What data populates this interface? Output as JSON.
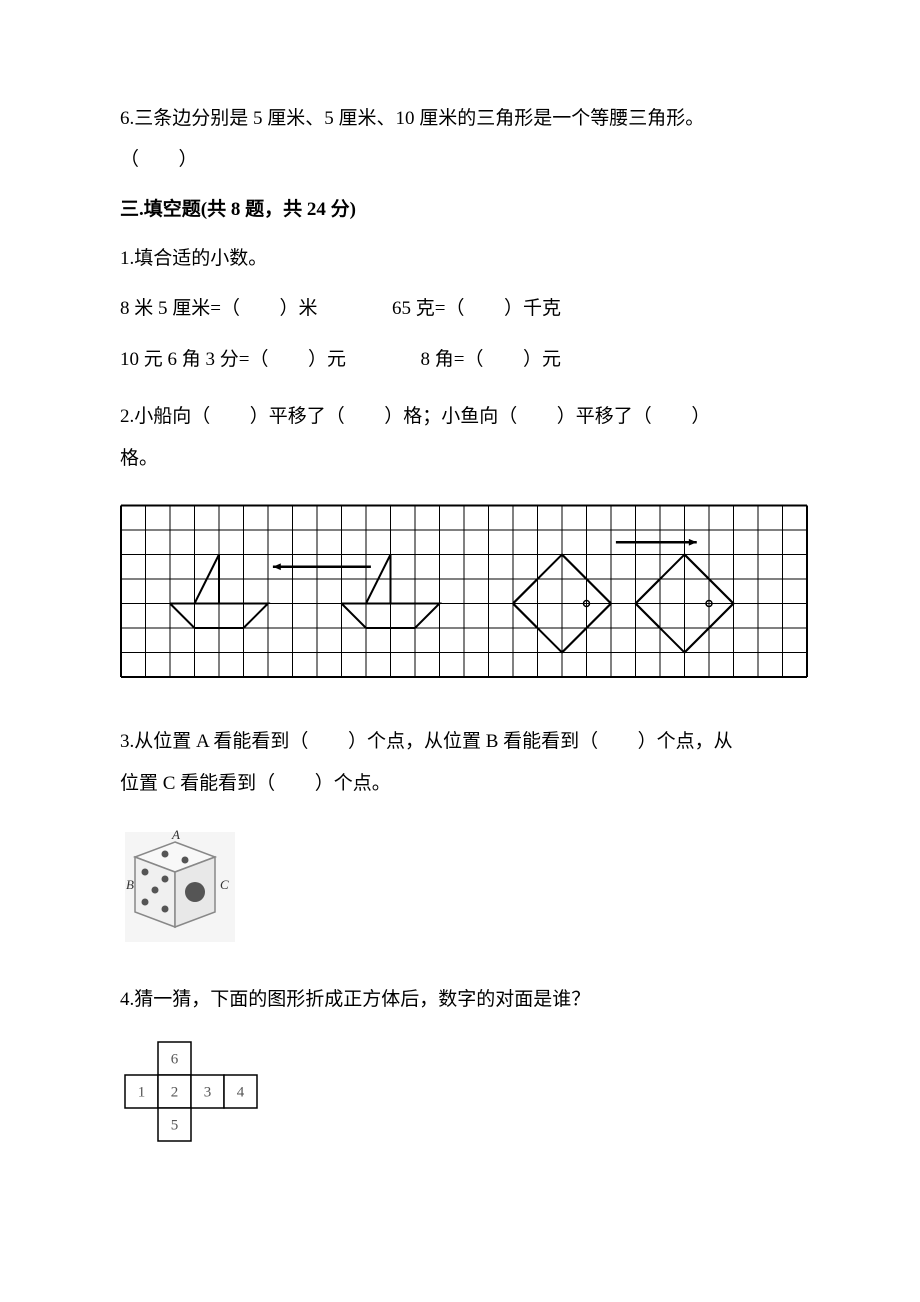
{
  "q6": {
    "text": "6.三条边分别是 5 厘米、5 厘米、10 厘米的三角形是一个等腰三角形。",
    "paren_open": "（",
    "paren_close": "）"
  },
  "section3": {
    "title": "三.填空题(共 8 题，共 24 分)"
  },
  "q3_1": {
    "intro": "1.填合适的小数。",
    "line1_a": "8 米 5 厘米=（",
    "line1_b": "）米",
    "line1_c": "65 克=（",
    "line1_d": "）千克",
    "line2_a": "10 元 6 角 3 分=（",
    "line2_b": "）元",
    "line2_c": "8 角=（",
    "line2_d": "）元"
  },
  "q3_2": {
    "text_a": "2.小船向（",
    "text_b": "）平移了（",
    "text_c": "）格；小鱼向（",
    "text_d": "）平移了（",
    "text_e": "）",
    "text_f": "格。"
  },
  "q3_3": {
    "text_a": "3.从位置 A 看能看到（",
    "text_b": "）个点，从位置 B 看能看到（",
    "text_c": "）个点，从",
    "text_d": "位置 C 看能看到（",
    "text_e": "）个点。"
  },
  "q3_4": {
    "text": "4.猜一猜，下面的图形折成正方体后，数字的对面是谁？"
  },
  "grid": {
    "cols": 28,
    "rows": 7,
    "cell": 24.5,
    "stroke": "#000000",
    "stroke_width": 1,
    "outer_stroke_width": 2
  },
  "dice": {
    "labels": {
      "a": "A",
      "b": "B",
      "c": "C"
    },
    "dot_color": "#555555",
    "fill": "#f5f5f5",
    "stroke": "#888888"
  },
  "net": {
    "values": [
      "6",
      "1",
      "2",
      "3",
      "4",
      "5"
    ],
    "cell": 33,
    "stroke": "#000000",
    "fill": "#ffffff",
    "text_color": "#555555"
  }
}
